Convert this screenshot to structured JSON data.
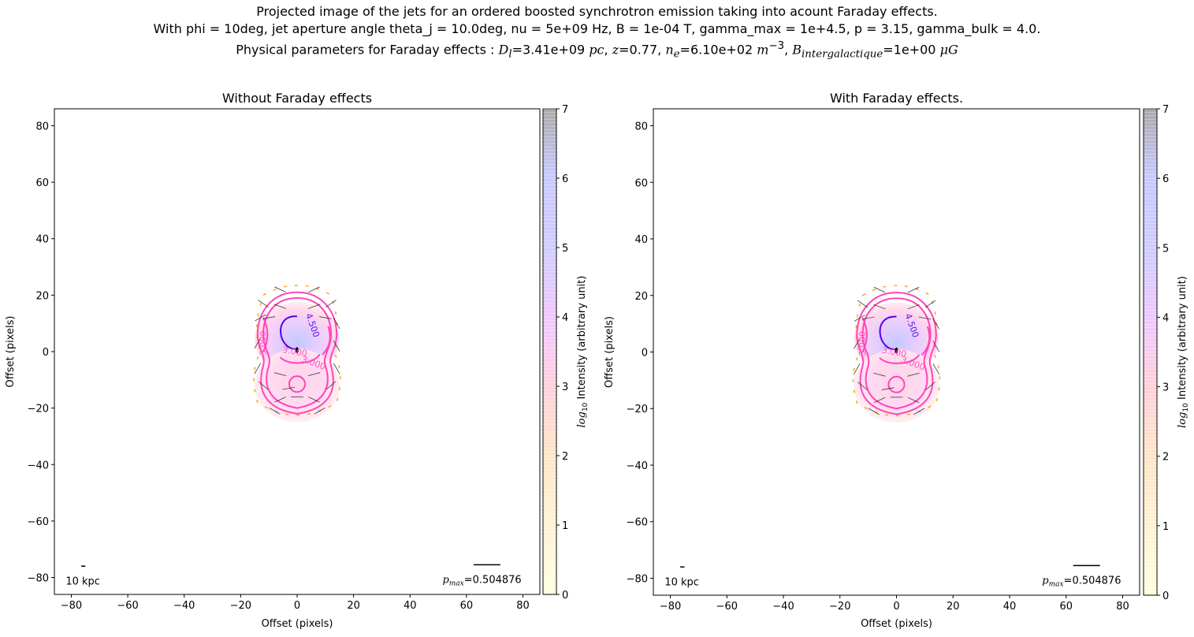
{
  "figure": {
    "title_line1": "Projected image of the jets for an ordered boosted synchrotron emission taking into acount Faraday effects.",
    "title_line2": "With phi = 10deg, jet aperture angle theta_j = 10.0deg, nu = 5e+09 Hz, B = 1e-04 T, gamma_max = 1e+4.5, p = 3.15, gamma_bulk = 4.0.",
    "title_line3": {
      "prefix": "Physical parameters for Faraday effects : ",
      "dl_label": "D",
      "dl_sub": "l",
      "dl_value": "=3.41e+09",
      "dl_unit": "pc",
      "z_label": "z",
      "z_value": "=0.77",
      "ne_label": "n",
      "ne_sub": "e",
      "ne_value": "=6.10e+02",
      "ne_unit": "m",
      "ne_unit_exp": "−3",
      "b_label": "B",
      "b_sub": "intergalactique",
      "b_value": "=1e+00",
      "b_unit": "μG"
    }
  },
  "chart_data": [
    {
      "type": "heatmap",
      "title": "Without Faraday effects",
      "xlabel": "Offset (pixels)",
      "ylabel": "Offset (pixels)",
      "xlim": [
        -86,
        86
      ],
      "ylim": [
        -86,
        86
      ],
      "xticks": [
        -80,
        -60,
        -40,
        -20,
        0,
        20,
        40,
        60,
        80
      ],
      "yticks": [
        -80,
        -60,
        -40,
        -20,
        0,
        20,
        40,
        60,
        80
      ],
      "tick_labels": [
        "−80",
        "−60",
        "−40",
        "−20",
        "0",
        "20",
        "40",
        "60",
        "80"
      ],
      "contour_levels": [
        {
          "level": 3.0,
          "label": "3.000",
          "color": "#ff44bb"
        },
        {
          "level": 4.5,
          "label": "4.500",
          "color": "#5500ee"
        }
      ],
      "contour_label_texts": [
        "4.500",
        "3.000",
        "3.000",
        "3.000"
      ],
      "scale_bar_label": "10 kpc",
      "pmax_label": "p",
      "pmax_sub": "max",
      "pmax_value": "=0.504876",
      "colorbar": {
        "label_prefix": "log",
        "label_sub": "10",
        "label_rest": " Intensity (arbitrary unit)",
        "range": [
          0,
          7
        ],
        "ticks": [
          "0",
          "1",
          "2",
          "3",
          "4",
          "5",
          "6",
          "7"
        ],
        "colors": [
          "#ffffcc",
          "#ffd9a0",
          "#ffb3cc",
          "#e6b3ff",
          "#b3b3ff",
          "#999999"
        ]
      }
    },
    {
      "type": "heatmap",
      "title": "With Faraday effects.",
      "xlabel": "Offset (pixels)",
      "ylabel": "Offset (pixels)",
      "xlim": [
        -86,
        86
      ],
      "ylim": [
        -86,
        86
      ],
      "xticks": [
        -80,
        -60,
        -40,
        -20,
        0,
        20,
        40,
        60,
        80
      ],
      "yticks": [
        -80,
        -60,
        -40,
        -20,
        0,
        20,
        40,
        60,
        80
      ],
      "tick_labels": [
        "−80",
        "−60",
        "−40",
        "−20",
        "0",
        "20",
        "40",
        "60",
        "80"
      ],
      "contour_levels": [
        {
          "level": 3.0,
          "label": "3.000",
          "color": "#ff44bb"
        },
        {
          "level": 4.5,
          "label": "4.500",
          "color": "#5500ee"
        }
      ],
      "contour_label_texts": [
        "4.500",
        "3.000",
        "3.000",
        "3.000"
      ],
      "scale_bar_label": "10 kpc",
      "pmax_label": "p",
      "pmax_sub": "max",
      "pmax_value": "=0.504876",
      "colorbar": {
        "label_prefix": "log",
        "label_sub": "10",
        "label_rest": " Intensity (arbitrary unit)",
        "range": [
          0,
          7
        ],
        "ticks": [
          "0",
          "1",
          "2",
          "3",
          "4",
          "5",
          "6",
          "7"
        ],
        "colors": [
          "#ffffcc",
          "#ffd9a0",
          "#ffb3cc",
          "#e6b3ff",
          "#b3b3ff",
          "#999999"
        ]
      }
    }
  ]
}
